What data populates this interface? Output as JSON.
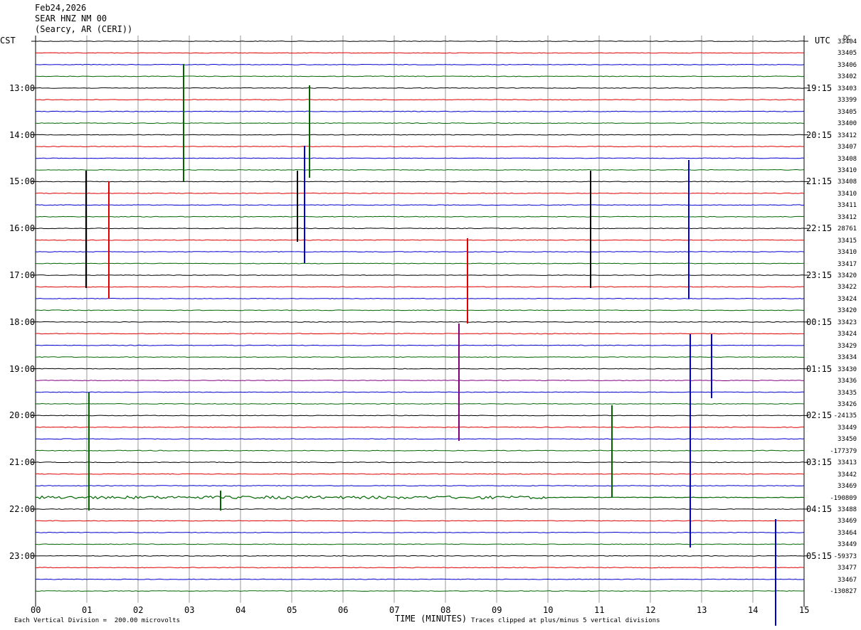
{
  "header": {
    "date": "Feb24,2026",
    "station": "SEAR HNZ NM 00",
    "location": "(Searcy, AR (CERI))"
  },
  "labels": {
    "left_tz": "CST",
    "right_tz": "UTC",
    "dc_header": "DC",
    "xlabel": "TIME (MINUTES)",
    "scale_note": "Each Vertical Division =  200.00 microvolts",
    "clip_note": "Traces clipped at plus/minus 5 vertical divisions"
  },
  "colors": {
    "black": "#000000",
    "red": "#e00000",
    "blue": "#0000d0",
    "green": "#006600",
    "purple": "#800080",
    "grid": "#808080"
  },
  "chart_data": {
    "type": "line",
    "xlim": [
      0,
      15
    ],
    "x_ticks": [
      "00",
      "01",
      "02",
      "03",
      "04",
      "05",
      "06",
      "07",
      "08",
      "09",
      "10",
      "11",
      "12",
      "13",
      "14",
      "15"
    ],
    "y_left_ticks": [
      "13:00",
      "14:00",
      "15:00",
      "16:00",
      "17:00",
      "18:00",
      "19:00",
      "20:00",
      "21:00",
      "22:00",
      "23:00"
    ],
    "y_right_ticks": [
      "19:15",
      "20:15",
      "21:15",
      "22:15",
      "23:15",
      "00:15",
      "01:15",
      "02:15",
      "03:15",
      "04:15",
      "05:15"
    ],
    "trace_minutes": 15,
    "dc_offsets": [
      "33404",
      "33405",
      "33406",
      "33402",
      "33403",
      "33399",
      "33405",
      "33400",
      "33412",
      "33407",
      "33408",
      "33410",
      "33408",
      "33410",
      "33411",
      "33412",
      "28761",
      "33415",
      "33410",
      "33417",
      "33420",
      "33422",
      "33424",
      "33420",
      "33423",
      "33424",
      "33429",
      "33434",
      "33430",
      "33436",
      "33435",
      "33426",
      "-24135",
      "33449",
      "33450",
      "-177379",
      "33413",
      "33442",
      "33469",
      "-190809",
      "33488",
      "33469",
      "33464",
      "33449",
      "-59373",
      "33477",
      "33467",
      "-130827"
    ],
    "trace_colors": [
      "black",
      "red",
      "blue",
      "green",
      "black",
      "red",
      "blue",
      "green",
      "black",
      "red",
      "blue",
      "green",
      "black",
      "red",
      "blue",
      "green",
      "black",
      "red",
      "blue",
      "green",
      "black",
      "red",
      "blue",
      "green",
      "black",
      "red",
      "blue",
      "green",
      "black",
      "purple",
      "blue",
      "green",
      "black",
      "red",
      "blue",
      "green",
      "black",
      "red",
      "blue",
      "green",
      "black",
      "red",
      "blue",
      "green",
      "black",
      "red",
      "blue",
      "green"
    ]
  }
}
